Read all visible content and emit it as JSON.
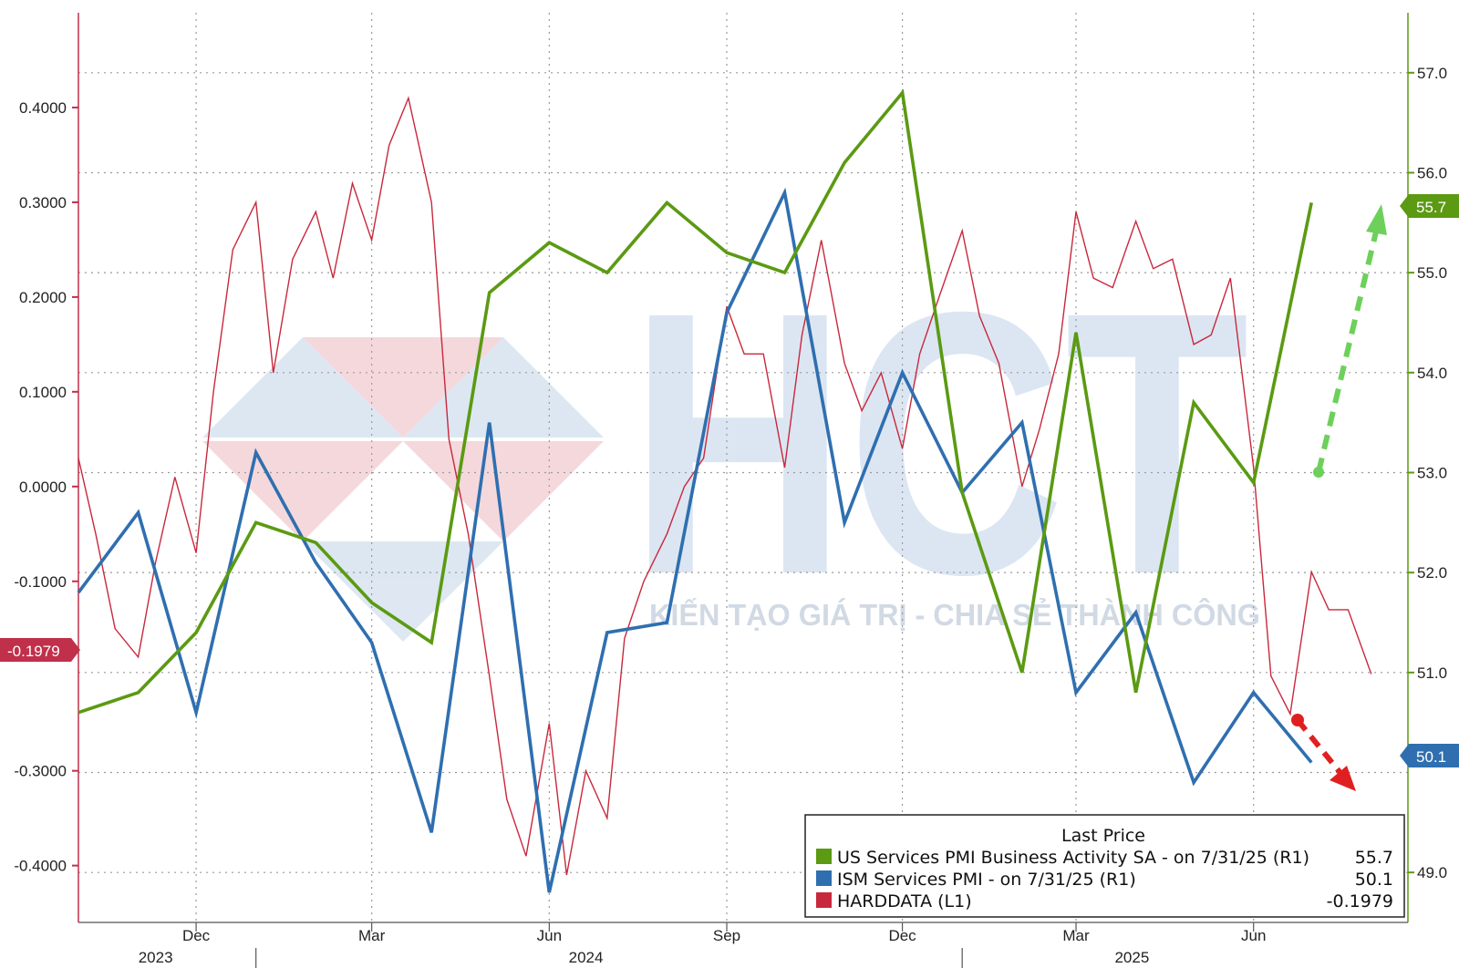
{
  "chart_data": {
    "type": "line",
    "title": "",
    "xlabel": "",
    "legend": {
      "title": "Last Price",
      "placement": "bottom-right",
      "entries": [
        {
          "label": "US Services PMI Business Activity SA -  on 7/31/25  (R1)",
          "value": "55.7",
          "color": "#5b9a12"
        },
        {
          "label": "ISM Services PMI -  on 7/31/25  (R1)",
          "value": "50.1",
          "color": "#2f6fb0"
        },
        {
          "label": "HARDDATA  (L1)",
          "value": "-0.1979",
          "color": "#c8283c"
        }
      ]
    },
    "x_axis": {
      "range": [
        "2023-10-01",
        "2025-08-20"
      ],
      "month_ticks": [
        {
          "label": "Dec",
          "date": "2023-12-01"
        },
        {
          "label": "Mar",
          "date": "2024-03-01"
        },
        {
          "label": "Jun",
          "date": "2024-06-01"
        },
        {
          "label": "Sep",
          "date": "2024-09-01"
        },
        {
          "label": "Dec",
          "date": "2024-12-01"
        },
        {
          "label": "Mar",
          "date": "2025-03-01"
        },
        {
          "label": "Jun",
          "date": "2025-06-01"
        }
      ],
      "year_labels": [
        {
          "label": "2023",
          "date": "2023-11-10"
        },
        {
          "label": "2024",
          "date": "2024-06-20"
        },
        {
          "label": "2025",
          "date": "2025-03-30"
        }
      ]
    },
    "y_left": {
      "range": [
        -0.46,
        0.5
      ],
      "ticks": [
        "0.4000",
        "0.3000",
        "0.2000",
        "0.1000",
        "0.0000",
        "-0.1000",
        "-0.3000",
        "-0.4000"
      ],
      "tick_values": [
        0.4,
        0.3,
        0.2,
        0.1,
        0.0,
        -0.1,
        -0.3,
        -0.4
      ]
    },
    "y_right": {
      "range": [
        48.5,
        57.6
      ],
      "ticks": [
        "57.0",
        "56.0",
        "55.0",
        "54.0",
        "53.0",
        "52.0",
        "51.0",
        "49.0"
      ],
      "tick_values": [
        57,
        56,
        55,
        54,
        53,
        52,
        51,
        49
      ],
      "gridlines": [
        57,
        56,
        55,
        54,
        53,
        52,
        51,
        50,
        49
      ]
    },
    "badges": {
      "left": "-0.1979",
      "right_green": "55.7",
      "right_blue": "50.1"
    },
    "series": [
      {
        "name": "US Services PMI Business Activity SA",
        "axis": "right",
        "color": "#5b9a12",
        "x": [
          "2023-10-01",
          "2023-11-01",
          "2023-12-01",
          "2024-01-01",
          "2024-02-01",
          "2024-03-01",
          "2024-04-01",
          "2024-05-01",
          "2024-06-01",
          "2024-07-01",
          "2024-08-01",
          "2024-09-01",
          "2024-10-01",
          "2024-11-01",
          "2024-12-01",
          "2025-01-01",
          "2025-02-01",
          "2025-03-01",
          "2025-04-01",
          "2025-05-01",
          "2025-06-01",
          "2025-07-01"
        ],
        "values": [
          50.6,
          50.8,
          51.4,
          52.5,
          52.3,
          51.7,
          51.3,
          54.8,
          55.3,
          55.0,
          55.7,
          55.2,
          55.0,
          56.1,
          56.8,
          52.8,
          51.0,
          54.4,
          50.8,
          53.7,
          52.9,
          55.7
        ]
      },
      {
        "name": "ISM Services PMI",
        "axis": "right",
        "color": "#2f6fb0",
        "x": [
          "2023-10-01",
          "2023-11-01",
          "2023-12-01",
          "2024-01-01",
          "2024-02-01",
          "2024-03-01",
          "2024-04-01",
          "2024-05-01",
          "2024-06-01",
          "2024-07-01",
          "2024-08-01",
          "2024-09-01",
          "2024-10-01",
          "2024-11-01",
          "2024-12-01",
          "2025-01-01",
          "2025-02-01",
          "2025-03-01",
          "2025-04-01",
          "2025-05-01",
          "2025-06-01",
          "2025-07-01"
        ],
        "values": [
          51.8,
          52.6,
          50.6,
          53.2,
          52.1,
          51.3,
          49.4,
          53.5,
          48.8,
          51.4,
          51.5,
          54.6,
          55.8,
          52.5,
          54.0,
          52.8,
          53.5,
          50.8,
          51.6,
          49.9,
          50.8,
          50.1
        ]
      },
      {
        "name": "HARDDATA",
        "axis": "left",
        "color": "#c8283c",
        "x": [
          "2023-10-01",
          "2023-10-10",
          "2023-10-20",
          "2023-11-01",
          "2023-11-10",
          "2023-11-20",
          "2023-12-01",
          "2023-12-10",
          "2023-12-20",
          "2024-01-01",
          "2024-01-10",
          "2024-01-20",
          "2024-02-01",
          "2024-02-10",
          "2024-02-20",
          "2024-03-01",
          "2024-03-10",
          "2024-03-20",
          "2024-04-01",
          "2024-04-10",
          "2024-04-20",
          "2024-05-01",
          "2024-05-10",
          "2024-05-20",
          "2024-06-01",
          "2024-06-10",
          "2024-06-20",
          "2024-07-01",
          "2024-07-10",
          "2024-07-20",
          "2024-08-01",
          "2024-08-10",
          "2024-08-20",
          "2024-09-01",
          "2024-09-10",
          "2024-09-20",
          "2024-10-01",
          "2024-10-10",
          "2024-10-20",
          "2024-11-01",
          "2024-11-10",
          "2024-11-20",
          "2024-12-01",
          "2024-12-10",
          "2024-12-20",
          "2025-01-01",
          "2025-01-10",
          "2025-01-20",
          "2025-02-01",
          "2025-02-10",
          "2025-02-20",
          "2025-03-01",
          "2025-03-10",
          "2025-03-20",
          "2025-04-01",
          "2025-04-10",
          "2025-04-20",
          "2025-05-01",
          "2025-05-10",
          "2025-05-20",
          "2025-06-01",
          "2025-06-10",
          "2025-06-20",
          "2025-07-01",
          "2025-07-10",
          "2025-07-20",
          "2025-08-01"
        ],
        "values": [
          0.03,
          -0.05,
          -0.15,
          -0.18,
          -0.08,
          0.01,
          -0.07,
          0.1,
          0.25,
          0.3,
          0.12,
          0.24,
          0.29,
          0.22,
          0.32,
          0.26,
          0.36,
          0.41,
          0.3,
          0.05,
          -0.05,
          -0.2,
          -0.33,
          -0.39,
          -0.25,
          -0.41,
          -0.3,
          -0.35,
          -0.16,
          -0.1,
          -0.05,
          0.0,
          0.03,
          0.19,
          0.14,
          0.14,
          0.02,
          0.16,
          0.26,
          0.13,
          0.08,
          0.12,
          0.04,
          0.14,
          0.2,
          0.27,
          0.18,
          0.13,
          0.0,
          0.06,
          0.14,
          0.29,
          0.22,
          0.21,
          0.28,
          0.23,
          0.24,
          0.15,
          0.16,
          0.22,
          0.02,
          -0.2,
          -0.24,
          -0.09,
          -0.13,
          -0.13,
          -0.1979
        ]
      }
    ]
  },
  "watermark": {
    "letters": "HCT",
    "tagline": "KIẾN TẠO GIÁ TRỊ - CHIA SẺ THÀNH CÔNG"
  },
  "colors": {
    "green": "#5b9a12",
    "blue": "#2f6fb0",
    "red": "#c8283c",
    "left_axis": "#c0304a",
    "right_axis": "#5b9a12",
    "grid": "#9a9a9a"
  }
}
